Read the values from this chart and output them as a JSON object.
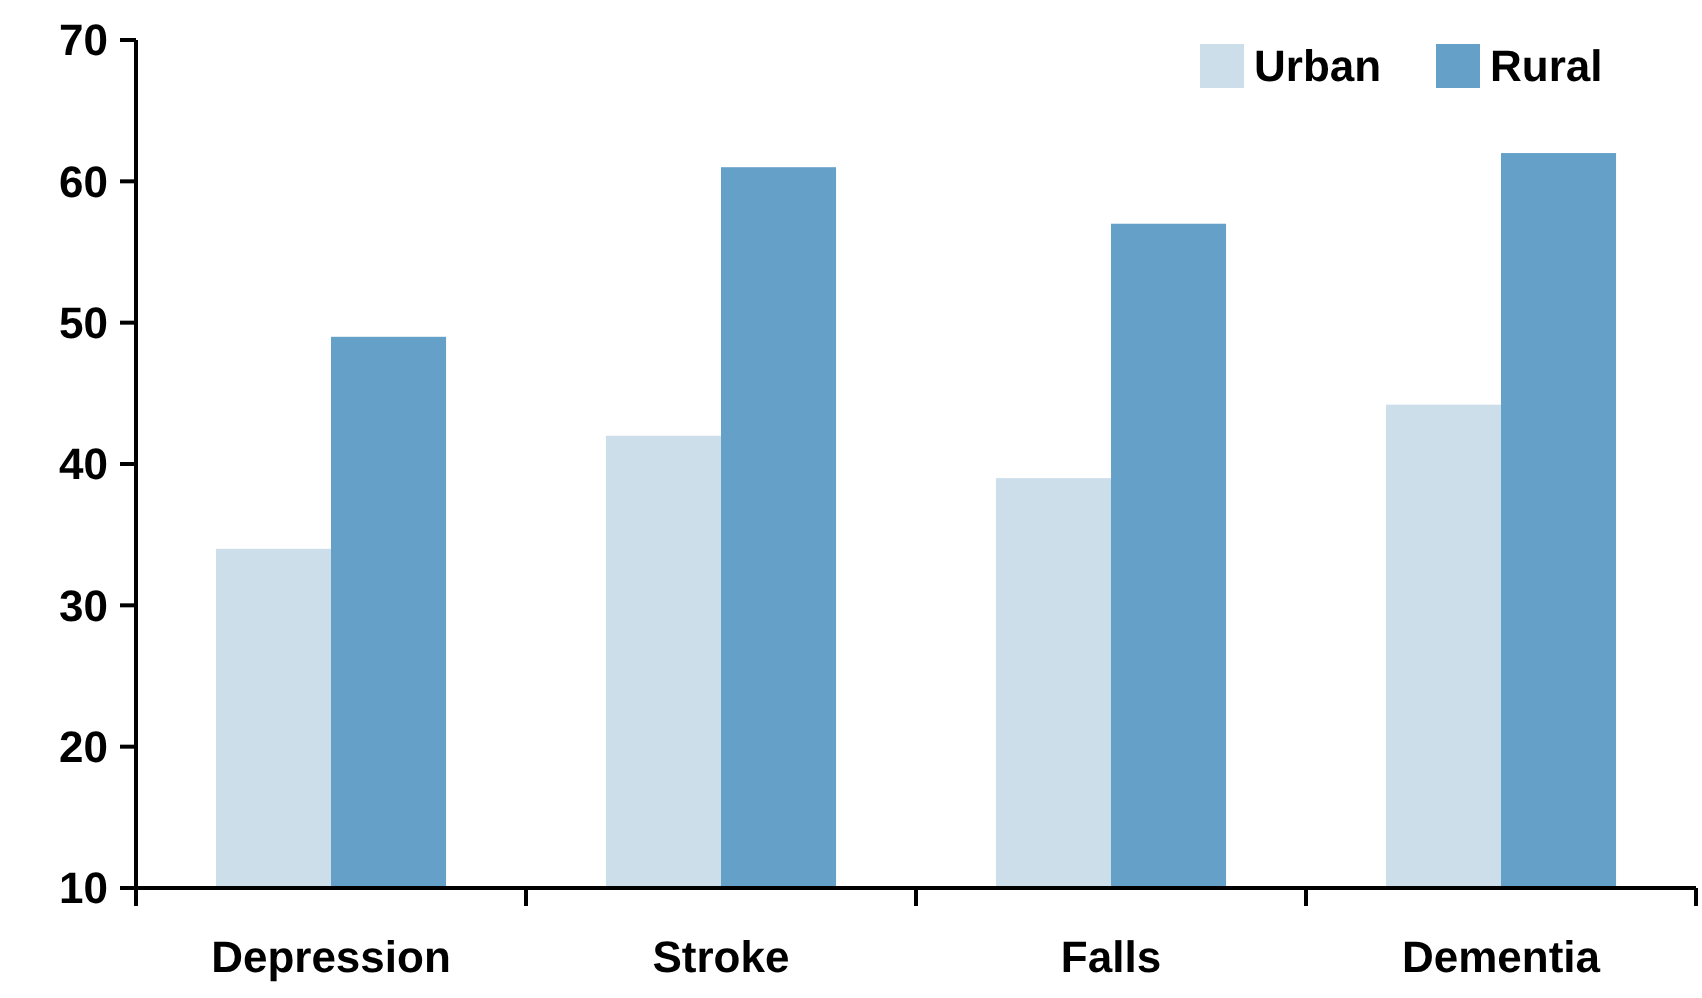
{
  "chart_data": {
    "type": "bar",
    "categories": [
      "Depression",
      "Stroke",
      "Falls",
      "Dementia"
    ],
    "series": [
      {
        "name": "Urban",
        "color": "#cddeeb",
        "values": [
          34,
          42,
          39,
          44.2
        ]
      },
      {
        "name": "Rural",
        "color": "#65a0c8",
        "values": [
          49,
          61,
          57,
          62
        ]
      }
    ],
    "ylim": [
      10,
      70
    ],
    "yticks": [
      10,
      20,
      30,
      40,
      50,
      60,
      70
    ],
    "grid": false,
    "legend": "top right"
  }
}
